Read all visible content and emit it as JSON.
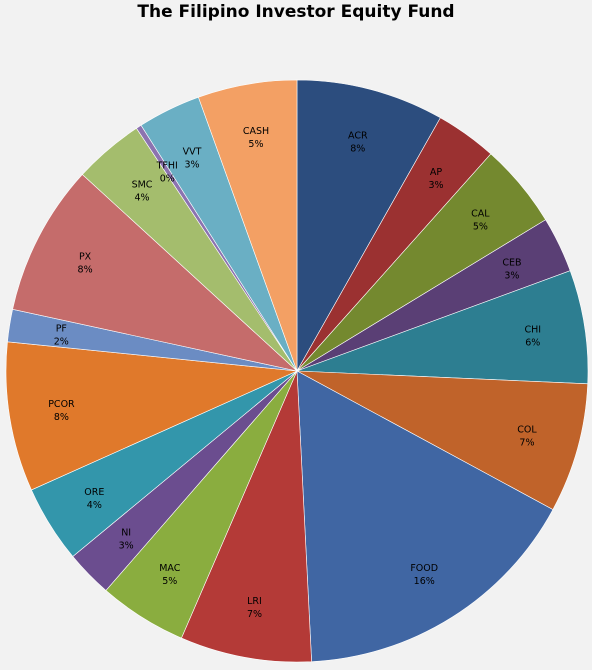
{
  "chart_data": {
    "type": "pie",
    "title": "The Filipino Investor Equity Fund",
    "start_angle_deg": 0,
    "direction": "clockwise",
    "slices": [
      {
        "name": "ACR",
        "pct_label": "8%",
        "value": 8.2,
        "color": "#2c4d7e"
      },
      {
        "name": "AP",
        "pct_label": "3%",
        "value": 3.4,
        "color": "#9b3131"
      },
      {
        "name": "CAL",
        "pct_label": "5%",
        "value": 4.7,
        "color": "#74892f"
      },
      {
        "name": "CEB",
        "pct_label": "3%",
        "value": 3.1,
        "color": "#5a3f75"
      },
      {
        "name": "CHI",
        "pct_label": "6%",
        "value": 6.3,
        "color": "#2d7e91"
      },
      {
        "name": "COL",
        "pct_label": "7%",
        "value": 7.2,
        "color": "#c0632a"
      },
      {
        "name": "FOOD",
        "pct_label": "16%",
        "value": 16.3,
        "color": "#4066a3"
      },
      {
        "name": "LRI",
        "pct_label": "7%",
        "value": 7.3,
        "color": "#b43a37"
      },
      {
        "name": "MAC",
        "pct_label": "5%",
        "value": 4.9,
        "color": "#8aad3f"
      },
      {
        "name": "NI",
        "pct_label": "3%",
        "value": 2.6,
        "color": "#6b4d8f"
      },
      {
        "name": "ORE",
        "pct_label": "4%",
        "value": 4.3,
        "color": "#3396ab"
      },
      {
        "name": "PCOR",
        "pct_label": "8%",
        "value": 8.3,
        "color": "#e0792b"
      },
      {
        "name": "PF",
        "pct_label": "2%",
        "value": 1.8,
        "color": "#6b8cc3"
      },
      {
        "name": "PX",
        "pct_label": "8%",
        "value": 8.4,
        "color": "#c56c6b"
      },
      {
        "name": "SMC",
        "pct_label": "4%",
        "value": 3.9,
        "color": "#a4bd6d"
      },
      {
        "name": "TFHI",
        "pct_label": "0%",
        "value": 0.3,
        "color": "#8c73b0"
      },
      {
        "name": "VVT",
        "pct_label": "3%",
        "value": 3.5,
        "color": "#6aafc4"
      },
      {
        "name": "CASH",
        "pct_label": "5%",
        "value": 5.5,
        "color": "#f3a064"
      }
    ]
  }
}
